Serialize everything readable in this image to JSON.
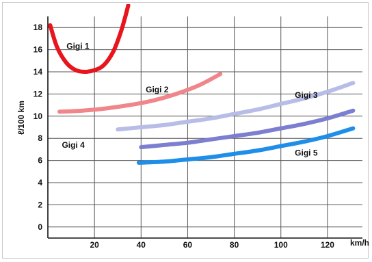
{
  "chart_data": {
    "type": "line",
    "title": "",
    "xlabel": "km/h",
    "ylabel": "ℓ/100 km",
    "xlim": [
      0,
      135
    ],
    "ylim": [
      -1,
      19
    ],
    "grid": true,
    "x_ticks": [
      {
        "value": 20,
        "label": "20"
      },
      {
        "value": 40,
        "label": "40"
      },
      {
        "value": 60,
        "label": "60"
      },
      {
        "value": 80,
        "label": "80"
      },
      {
        "value": 100,
        "label": "100"
      },
      {
        "value": 120,
        "label": "120"
      }
    ],
    "y_ticks": [
      {
        "value": 0,
        "label": "0"
      },
      {
        "value": 2,
        "label": "2"
      },
      {
        "value": 4,
        "label": "4"
      },
      {
        "value": 6,
        "label": "6"
      },
      {
        "value": 8,
        "label": "8"
      },
      {
        "value": 10,
        "label": "10"
      },
      {
        "value": 12,
        "label": "12"
      },
      {
        "value": 14,
        "label": "14"
      },
      {
        "value": 16,
        "label": "16"
      },
      {
        "value": 18,
        "label": "18"
      }
    ],
    "series": [
      {
        "name": "Gigi 1",
        "color": "#e8141e",
        "label_at": [
          8,
          16.3
        ],
        "x": [
          1,
          4,
          8,
          12,
          16,
          20,
          24,
          28,
          31,
          33,
          34.5
        ],
        "y": [
          18.2,
          16.2,
          14.8,
          14.15,
          14.0,
          14.15,
          14.6,
          15.8,
          17.4,
          18.8,
          20.0
        ]
      },
      {
        "name": "Gigi 2",
        "color": "#f0868a",
        "label_at": [
          42,
          12.4
        ],
        "x": [
          5,
          15,
          25,
          35,
          45,
          55,
          65,
          74
        ],
        "y": [
          10.4,
          10.5,
          10.7,
          11.0,
          11.4,
          12.0,
          12.8,
          13.8
        ]
      },
      {
        "name": "Gigi 3",
        "color": "#b8bde8",
        "label_at": [
          106,
          11.9
        ],
        "x": [
          30,
          40,
          50,
          60,
          70,
          80,
          90,
          100,
          110,
          120,
          131
        ],
        "y": [
          8.8,
          9.0,
          9.2,
          9.5,
          9.8,
          10.2,
          10.6,
          11.1,
          11.6,
          12.2,
          13.0
        ]
      },
      {
        "name": "Gigi 4",
        "color": "#7c7ed0",
        "label_at": [
          6,
          7.4
        ],
        "x": [
          40,
          50,
          60,
          70,
          80,
          90,
          100,
          110,
          120,
          131
        ],
        "y": [
          7.2,
          7.4,
          7.6,
          7.9,
          8.2,
          8.5,
          8.9,
          9.3,
          9.8,
          10.5
        ]
      },
      {
        "name": "Gigi 5",
        "color": "#1f8ee8",
        "label_at": [
          106,
          6.7
        ],
        "x": [
          39,
          50,
          60,
          70,
          80,
          90,
          100,
          110,
          120,
          131
        ],
        "y": [
          5.8,
          5.9,
          6.1,
          6.3,
          6.6,
          6.9,
          7.3,
          7.7,
          8.2,
          8.9
        ]
      }
    ]
  }
}
